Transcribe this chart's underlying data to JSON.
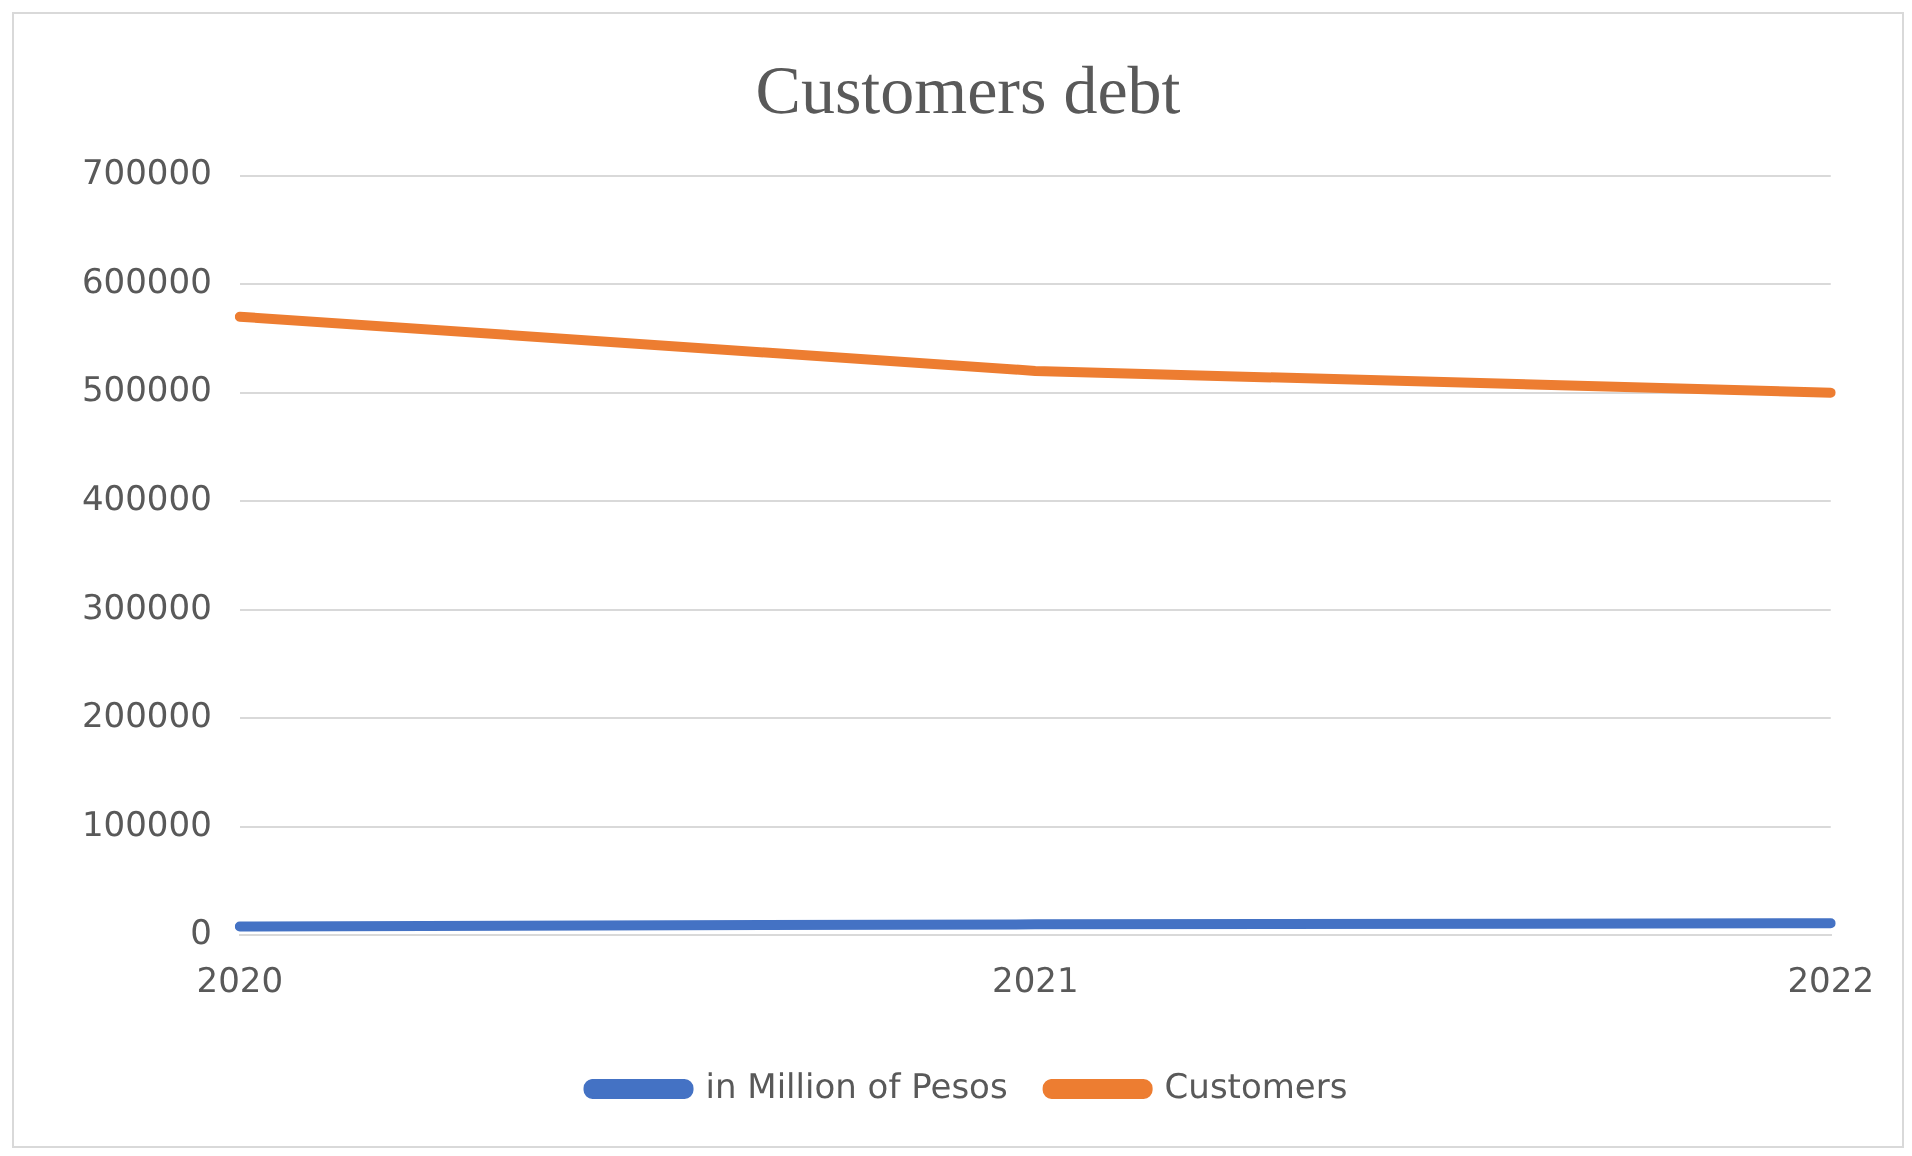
{
  "chart_data": {
    "type": "line",
    "title": "Customers debt",
    "categories": [
      "2020",
      "2021",
      "2022"
    ],
    "series": [
      {
        "name": "in Million of Pesos",
        "color": "#4472c4",
        "values": [
          8000,
          10000,
          11000
        ]
      },
      {
        "name": "Customers",
        "color": "#ed7d31",
        "values": [
          570000,
          520000,
          500000
        ]
      }
    ],
    "ylim": [
      0,
      700000
    ],
    "yticks": [
      0,
      100000,
      200000,
      300000,
      400000,
      500000,
      600000,
      700000
    ],
    "grid": "y",
    "legend": "bottom",
    "marker": "none",
    "line_style": "solid"
  }
}
